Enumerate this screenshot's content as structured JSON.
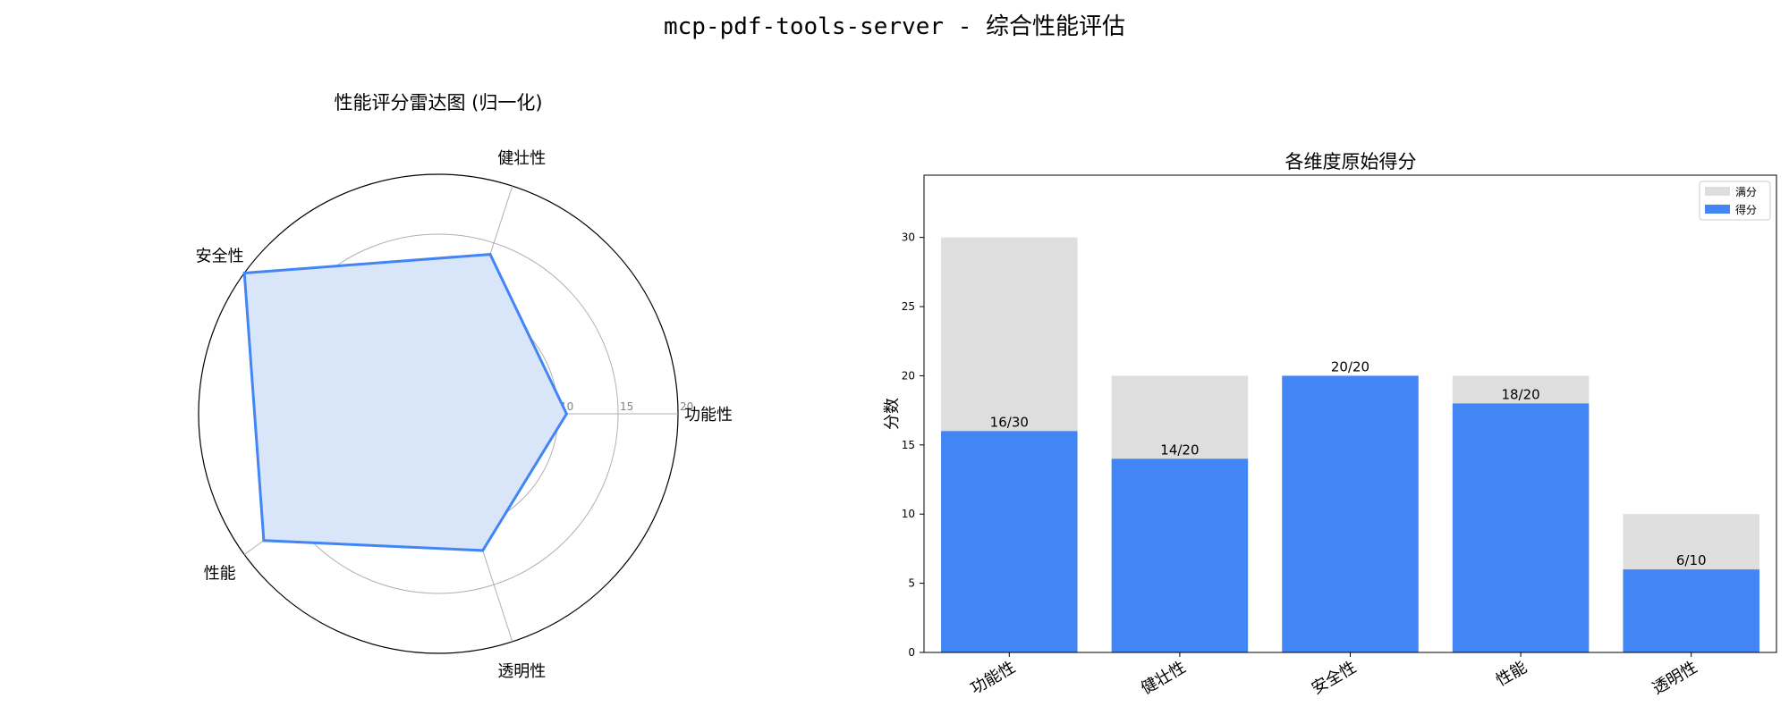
{
  "suptitle": "mcp-pdf-tools-server - 综合性能评估",
  "colors": {
    "score": "#4285f4",
    "full": "#dedede",
    "radar_fill": "#d9e5f8",
    "grid": "#b0b0b0"
  },
  "radar": {
    "title": "性能评分雷达图 (归一化)",
    "max": 20,
    "rticks": [
      5,
      10,
      15,
      20
    ],
    "axes": [
      "功能性",
      "健壮性",
      "安全性",
      "性能",
      "透明性"
    ],
    "values": [
      10.7,
      14,
      20,
      18,
      12
    ]
  },
  "chart_data": [
    {
      "type": "radar",
      "title": "性能评分雷达图 (归一化)",
      "categories": [
        "功能性",
        "健壮性",
        "安全性",
        "性能",
        "透明性"
      ],
      "values": [
        10.7,
        14,
        20,
        18,
        12
      ],
      "rlim": [
        0,
        20
      ],
      "rticks": [
        5,
        10,
        15,
        20
      ]
    },
    {
      "type": "bar",
      "title": "各维度原始得分",
      "ylabel": "分数",
      "xlabel": "",
      "categories": [
        "功能性",
        "健壮性",
        "安全性",
        "性能",
        "透明性"
      ],
      "series": [
        {
          "name": "满分",
          "values": [
            30,
            20,
            20,
            20,
            10
          ]
        },
        {
          "name": "得分",
          "values": [
            16,
            14,
            20,
            18,
            6
          ]
        }
      ],
      "data_labels": [
        "16/30",
        "14/20",
        "20/20",
        "18/20",
        "6/10"
      ],
      "ylim": [
        0,
        34.5
      ],
      "yticks": [
        0,
        5,
        10,
        15,
        20,
        25,
        30
      ],
      "legend": "top-right",
      "grid": false
    }
  ],
  "bar": {
    "title": "各维度原始得分",
    "ylabel": "分数",
    "legend": [
      "满分",
      "得分"
    ]
  }
}
